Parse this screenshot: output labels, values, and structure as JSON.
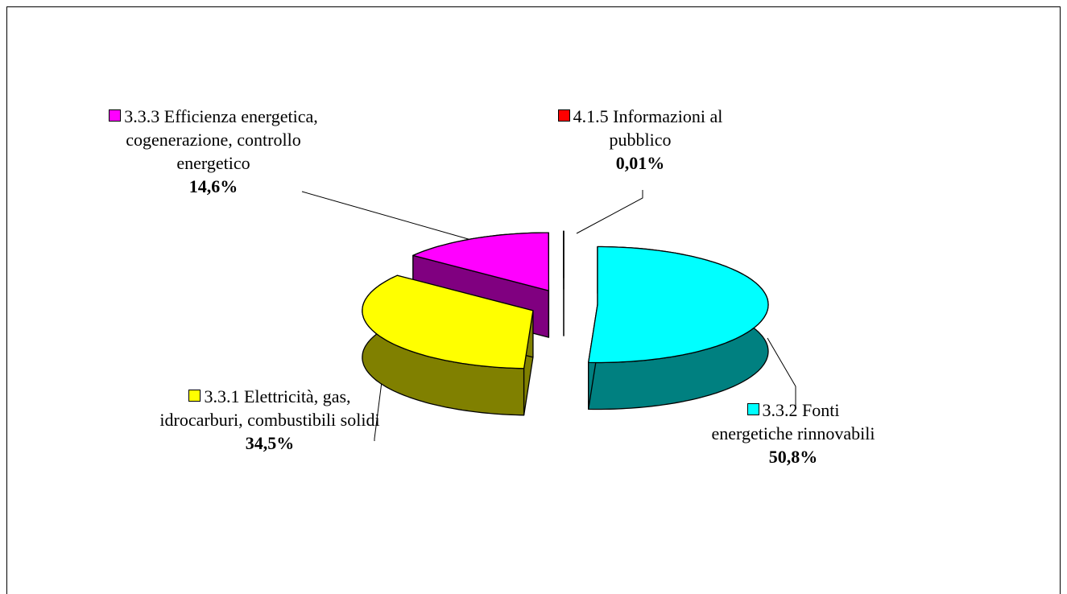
{
  "chart_data": {
    "type": "pie",
    "categories": [
      "3.3.2 Fonti energetiche rinnovabili",
      "3.3.1 Elettricità, gas, idrocarburi, combustibili solidi",
      "3.3.3 Efficienza energetica, cogenerazione, controllo energetico",
      "4.1.5 Informazioni al pubblico"
    ],
    "values": [
      50.8,
      34.5,
      14.6,
      0.01
    ],
    "value_labels": [
      "50,8%",
      "34,5%",
      "14,6%",
      "0,01%"
    ],
    "colors": [
      "#00ffff",
      "#ffff00",
      "#ff00ff",
      "#ff0000"
    ],
    "side_colors": [
      "#008080",
      "#808000",
      "#800080",
      "#800000"
    ],
    "three_d": true
  }
}
